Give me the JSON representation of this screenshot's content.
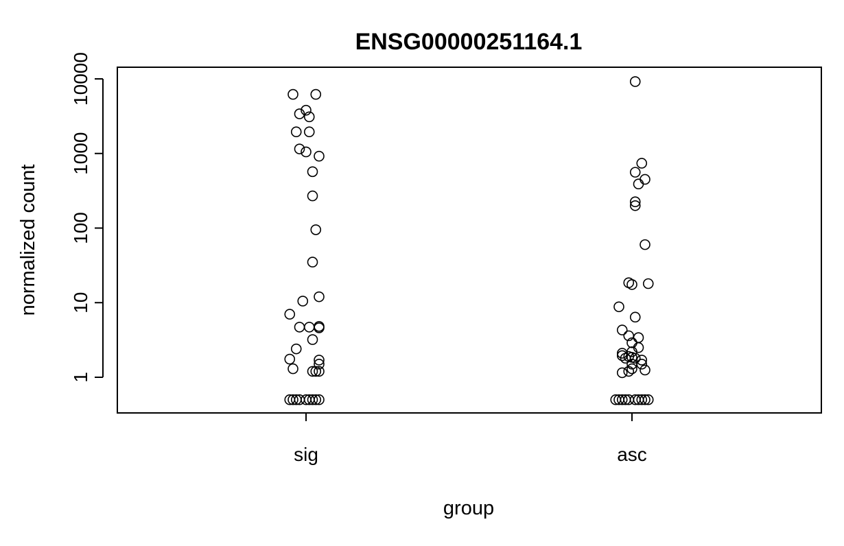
{
  "chart_data": {
    "type": "scatter",
    "title": "ENSG00000251164.1",
    "xlabel": "group",
    "ylabel": "normalized count",
    "categories": [
      "sig",
      "asc"
    ],
    "y_scale": "log",
    "y_ticks": [
      1,
      10,
      100,
      1000,
      10000
    ],
    "y_tick_labels": [
      "1",
      "10",
      "100",
      "1000",
      "10000"
    ],
    "ylim": [
      0.35,
      13000
    ],
    "grid": false,
    "series": [
      {
        "category": "sig",
        "points": [
          {
            "x": 0.96,
            "y": 6200
          },
          {
            "x": 1.03,
            "y": 6200
          },
          {
            "x": 0.98,
            "y": 3400
          },
          {
            "x": 1.0,
            "y": 3800
          },
          {
            "x": 1.01,
            "y": 3100
          },
          {
            "x": 0.97,
            "y": 1950
          },
          {
            "x": 1.01,
            "y": 1950
          },
          {
            "x": 0.98,
            "y": 1150
          },
          {
            "x": 1.0,
            "y": 1050
          },
          {
            "x": 1.04,
            "y": 920
          },
          {
            "x": 1.02,
            "y": 570
          },
          {
            "x": 1.02,
            "y": 270
          },
          {
            "x": 1.03,
            "y": 95
          },
          {
            "x": 1.02,
            "y": 35
          },
          {
            "x": 1.04,
            "y": 12
          },
          {
            "x": 0.99,
            "y": 10.5
          },
          {
            "x": 0.95,
            "y": 7
          },
          {
            "x": 0.98,
            "y": 4.7
          },
          {
            "x": 1.01,
            "y": 4.7
          },
          {
            "x": 1.04,
            "y": 4.8
          },
          {
            "x": 1.04,
            "y": 4.6
          },
          {
            "x": 1.02,
            "y": 3.2
          },
          {
            "x": 0.97,
            "y": 2.4
          },
          {
            "x": 0.95,
            "y": 1.75
          },
          {
            "x": 1.04,
            "y": 1.7
          },
          {
            "x": 1.04,
            "y": 1.5
          },
          {
            "x": 0.96,
            "y": 1.3
          },
          {
            "x": 1.02,
            "y": 1.2
          },
          {
            "x": 1.03,
            "y": 1.2
          },
          {
            "x": 1.04,
            "y": 1.2
          },
          {
            "x": 0.95,
            "y": 0.5
          },
          {
            "x": 0.96,
            "y": 0.5
          },
          {
            "x": 0.97,
            "y": 0.5
          },
          {
            "x": 0.98,
            "y": 0.5
          },
          {
            "x": 1.0,
            "y": 0.5
          },
          {
            "x": 1.01,
            "y": 0.5
          },
          {
            "x": 1.02,
            "y": 0.5
          },
          {
            "x": 1.03,
            "y": 0.5
          },
          {
            "x": 1.04,
            "y": 0.5
          }
        ]
      },
      {
        "category": "asc",
        "points": [
          {
            "x": 2.01,
            "y": 9200
          },
          {
            "x": 2.03,
            "y": 740
          },
          {
            "x": 2.01,
            "y": 560
          },
          {
            "x": 2.04,
            "y": 450
          },
          {
            "x": 2.02,
            "y": 390
          },
          {
            "x": 2.01,
            "y": 225
          },
          {
            "x": 2.01,
            "y": 200
          },
          {
            "x": 2.04,
            "y": 60
          },
          {
            "x": 1.99,
            "y": 18.5
          },
          {
            "x": 2.0,
            "y": 17.5
          },
          {
            "x": 2.05,
            "y": 18
          },
          {
            "x": 1.96,
            "y": 8.8
          },
          {
            "x": 2.01,
            "y": 6.4
          },
          {
            "x": 1.97,
            "y": 4.3
          },
          {
            "x": 1.99,
            "y": 3.6
          },
          {
            "x": 2.02,
            "y": 3.4
          },
          {
            "x": 2.0,
            "y": 2.9
          },
          {
            "x": 2.02,
            "y": 2.5
          },
          {
            "x": 2.0,
            "y": 2.2
          },
          {
            "x": 1.97,
            "y": 2.1
          },
          {
            "x": 1.97,
            "y": 1.95
          },
          {
            "x": 1.98,
            "y": 1.8
          },
          {
            "x": 1.99,
            "y": 1.9
          },
          {
            "x": 2.0,
            "y": 1.85
          },
          {
            "x": 2.01,
            "y": 1.8
          },
          {
            "x": 2.03,
            "y": 1.7
          },
          {
            "x": 2.0,
            "y": 1.5
          },
          {
            "x": 2.03,
            "y": 1.5
          },
          {
            "x": 2.0,
            "y": 1.3
          },
          {
            "x": 1.99,
            "y": 1.2
          },
          {
            "x": 1.97,
            "y": 1.15
          },
          {
            "x": 2.04,
            "y": 1.25
          },
          {
            "x": 1.95,
            "y": 0.5
          },
          {
            "x": 1.96,
            "y": 0.5
          },
          {
            "x": 1.97,
            "y": 0.5
          },
          {
            "x": 1.98,
            "y": 0.5
          },
          {
            "x": 1.99,
            "y": 0.5
          },
          {
            "x": 2.01,
            "y": 0.5
          },
          {
            "x": 2.02,
            "y": 0.5
          },
          {
            "x": 2.03,
            "y": 0.5
          },
          {
            "x": 2.04,
            "y": 0.5
          },
          {
            "x": 2.05,
            "y": 0.5
          }
        ]
      }
    ]
  }
}
